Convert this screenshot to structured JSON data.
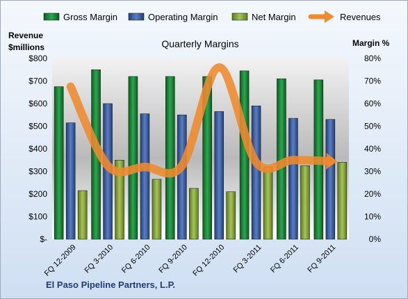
{
  "chart_data": {
    "type": "bar",
    "title": "Quarterly Margins",
    "footer": "El Paso Pipeline Partners, L.P.",
    "left_axis_title": [
      "Revenue",
      "$millions"
    ],
    "right_axis_title": "Margin %",
    "categories": [
      "FQ 12-2009",
      "FQ 3-2010",
      "FQ 6-2010",
      "FQ 9-2010",
      "FQ 12-2010",
      "FQ 3-2011",
      "FQ 6-2011",
      "FQ 9-2011"
    ],
    "left_axis": {
      "ylim": [
        0,
        800
      ],
      "ticks": [
        0,
        100,
        200,
        300,
        400,
        500,
        600,
        700,
        800
      ],
      "tick_labels": [
        "$-",
        "$100",
        "$200",
        "$300",
        "$400",
        "$500",
        "$600",
        "$700",
        "$800"
      ]
    },
    "right_axis": {
      "ylim": [
        0,
        80
      ],
      "ticks": [
        0,
        10,
        20,
        30,
        40,
        50,
        60,
        70,
        80
      ],
      "tick_labels": [
        "0%",
        "10%",
        "20%",
        "30%",
        "40%",
        "50%",
        "60%",
        "70%",
        "80%"
      ]
    },
    "series": [
      {
        "name": "Gross Margin",
        "kind": "bar",
        "axis": "right",
        "color": "#1e8a3c",
        "values": [
          67.5,
          75,
          72,
          72,
          72,
          74.5,
          71,
          70.5
        ]
      },
      {
        "name": "Operating Margin",
        "kind": "bar",
        "axis": "right",
        "color": "#3d5fa8",
        "values": [
          51.5,
          60,
          55.5,
          55,
          56.5,
          59,
          53.5,
          53
        ]
      },
      {
        "name": "Net Margin",
        "kind": "bar",
        "axis": "right",
        "color": "#8aab3c",
        "values": [
          21.5,
          35,
          26.5,
          22.5,
          21,
          32,
          32.5,
          34
        ]
      },
      {
        "name": "Revenues",
        "kind": "line",
        "axis": "left",
        "color": "#ef8a2e",
        "values": [
          675,
          325,
          320,
          325,
          760,
          340,
          350,
          345
        ]
      }
    ],
    "legend_position": "top",
    "grid": false
  }
}
